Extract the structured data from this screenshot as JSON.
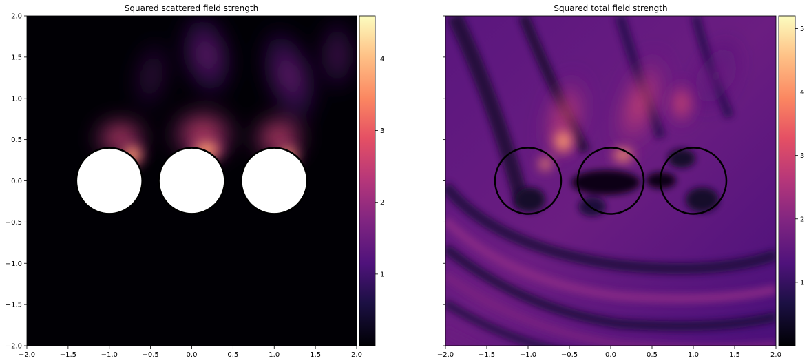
{
  "chart_data": [
    {
      "type": "heatmap",
      "title": "Squared scattered field strength",
      "colormap": "magma",
      "xlim": [
        -2.0,
        2.0
      ],
      "ylim": [
        -2.0,
        2.0
      ],
      "x_ticks": [
        -2.0,
        -1.5,
        -1.0,
        -0.5,
        0.0,
        0.5,
        1.0,
        1.5,
        2.0
      ],
      "x_tick_labels": [
        "−2.0",
        "−1.5",
        "−1.0",
        "−0.5",
        "0.0",
        "0.5",
        "1.0",
        "1.5",
        "2.0"
      ],
      "y_ticks": [
        -2.0,
        -1.5,
        -1.0,
        -0.5,
        0.0,
        0.5,
        1.0,
        1.5,
        2.0
      ],
      "y_tick_labels": [
        "−2.0",
        "−1.5",
        "−1.0",
        "−0.5",
        "0.0",
        "0.5",
        "1.0",
        "1.5",
        "2.0"
      ],
      "colorbar": {
        "min": 0,
        "max": 4.6,
        "ticks": [
          1,
          2,
          3,
          4
        ],
        "tick_labels": [
          "1",
          "2",
          "3",
          "4"
        ]
      },
      "circles": [
        {
          "cx": -1.0,
          "cy": 0.0,
          "r": 0.4,
          "fill": "#ffffff"
        },
        {
          "cx": 0.0,
          "cy": 0.0,
          "r": 0.4,
          "fill": "#ffffff"
        },
        {
          "cx": 1.0,
          "cy": 0.0,
          "r": 0.4,
          "fill": "#ffffff"
        }
      ]
    },
    {
      "type": "heatmap",
      "title": "Squared total field strength",
      "colormap": "magma",
      "xlim": [
        -2.0,
        2.0
      ],
      "ylim": [
        -2.0,
        2.0
      ],
      "x_ticks": [
        -2.0,
        -1.5,
        -1.0,
        -0.5,
        0.0,
        0.5,
        1.0,
        1.5,
        2.0
      ],
      "x_tick_labels": [
        "−2.0",
        "−1.5",
        "−1.0",
        "−0.5",
        "0.0",
        "0.5",
        "1.0",
        "1.5",
        "2.0"
      ],
      "y_ticks": [
        -2.0,
        -1.5,
        -1.0,
        -0.5,
        0.0,
        0.5,
        1.0,
        1.5,
        2.0
      ],
      "y_tick_labels": [],
      "colorbar": {
        "min": 0,
        "max": 5.2,
        "ticks": [
          1,
          2,
          3,
          4,
          5
        ],
        "tick_labels": [
          "1",
          "2",
          "3",
          "4",
          "5"
        ]
      },
      "circles": [
        {
          "cx": -1.0,
          "cy": 0.0,
          "r": 0.4,
          "fill": "none"
        },
        {
          "cx": 0.0,
          "cy": 0.0,
          "r": 0.4,
          "fill": "none"
        },
        {
          "cx": 1.0,
          "cy": 0.0,
          "r": 0.4,
          "fill": "none"
        }
      ]
    }
  ]
}
